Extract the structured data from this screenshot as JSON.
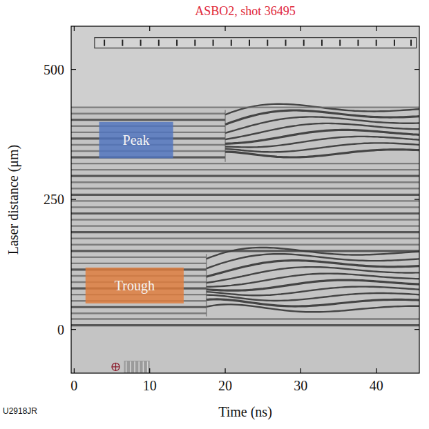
{
  "chart_data": {
    "type": "image",
    "title": "ASBO2, shot 36495",
    "x_label": "Time (ns)",
    "y_label": "Laser distance (μm)",
    "xlim": [
      -0.4,
      45.7
    ],
    "ylim": [
      -84,
      583
    ],
    "xticks": [
      0,
      10,
      20,
      30,
      40
    ],
    "yticks": [
      0,
      250,
      500
    ],
    "fringes": [
      8,
      20,
      31,
      43,
      55,
      67,
      79,
      91,
      103,
      115,
      127,
      139,
      151,
      163,
      175,
      187,
      199,
      211,
      223,
      235,
      247,
      259,
      271,
      283,
      295,
      307,
      319,
      331,
      343,
      355,
      367,
      379,
      391,
      403,
      415,
      427
    ],
    "disturbances": [
      {
        "start": 20,
        "ylim": [
          322,
          422
        ]
      },
      {
        "start": 17.5,
        "ylim": [
          25,
          145
        ]
      }
    ],
    "annotations": [
      {
        "text": "Peak",
        "color": "#4f74c0",
        "x": [
          3.3,
          13.1
        ],
        "y": [
          329,
          399
        ]
      },
      {
        "text": "Trough",
        "color": "#e07d3c",
        "x": [
          1.5,
          14.5
        ],
        "y": [
          50,
          119
        ]
      }
    ],
    "timing_marks": [
      4,
      6.4,
      8.8,
      11.2,
      13.6,
      16,
      18.4,
      20.8,
      23.2,
      25.6,
      28,
      30.4,
      32.8,
      35.2,
      37.6,
      40,
      42.4,
      44.6
    ],
    "timing_box": {
      "x": [
        2.7,
        45.3
      ],
      "y": [
        541,
        561
      ]
    },
    "fiducial": {
      "x": 5.5,
      "y": -72,
      "streak_x": [
        6.6,
        10
      ]
    },
    "figure_id": "U2918JR"
  }
}
